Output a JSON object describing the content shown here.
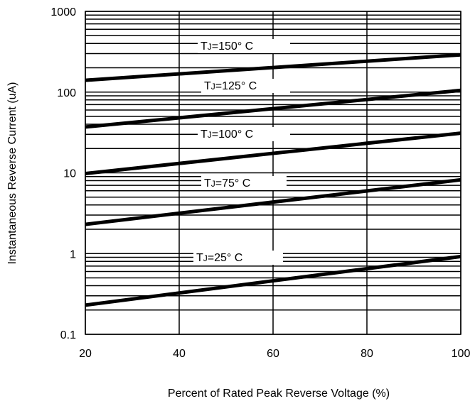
{
  "chart_data": {
    "type": "line",
    "title": "",
    "xlabel": "Percent of Rated Peak Reverse Voltage (%)",
    "ylabel": "Instantaneous Reverse Current (uA)",
    "x_ticks": [
      20,
      40,
      60,
      80,
      100
    ],
    "x_tick_labels": [
      "20",
      "40",
      "60",
      "80",
      "100"
    ],
    "xlim": [
      20,
      100
    ],
    "y_scale": "log",
    "ylim": [
      0.1,
      1000
    ],
    "y_ticks": [
      0.1,
      1,
      10,
      100,
      1000
    ],
    "y_tick_labels": [
      "0.1",
      "1",
      "10",
      "100",
      "1000"
    ],
    "grid": true,
    "series": [
      {
        "name": "TJ=150° C",
        "label_main": "T",
        "label_sub": "J",
        "label_rest": "=150°  C",
        "x": [
          20,
          100
        ],
        "y": [
          140,
          290
        ]
      },
      {
        "name": "TJ=125° C",
        "label_main": "T",
        "label_sub": "J",
        "label_rest": "=125°  C",
        "x": [
          20,
          100
        ],
        "y": [
          37,
          105
        ]
      },
      {
        "name": "TJ=100° C",
        "label_main": "T",
        "label_sub": "J",
        "label_rest": "=100°  C",
        "x": [
          20,
          100
        ],
        "y": [
          9.8,
          31
        ]
      },
      {
        "name": "TJ=75° C",
        "label_main": "T",
        "label_sub": "J",
        "label_rest": "=75°  C",
        "x": [
          20,
          100
        ],
        "y": [
          2.3,
          8.2
        ]
      },
      {
        "name": "TJ=25° C",
        "label_main": "T",
        "label_sub": "J",
        "label_rest": "=25°  C",
        "x": [
          20,
          100
        ],
        "y": [
          0.23,
          0.92
        ]
      }
    ],
    "colors": {
      "line": "#000000",
      "grid": "#000000",
      "background": "#ffffff"
    }
  }
}
